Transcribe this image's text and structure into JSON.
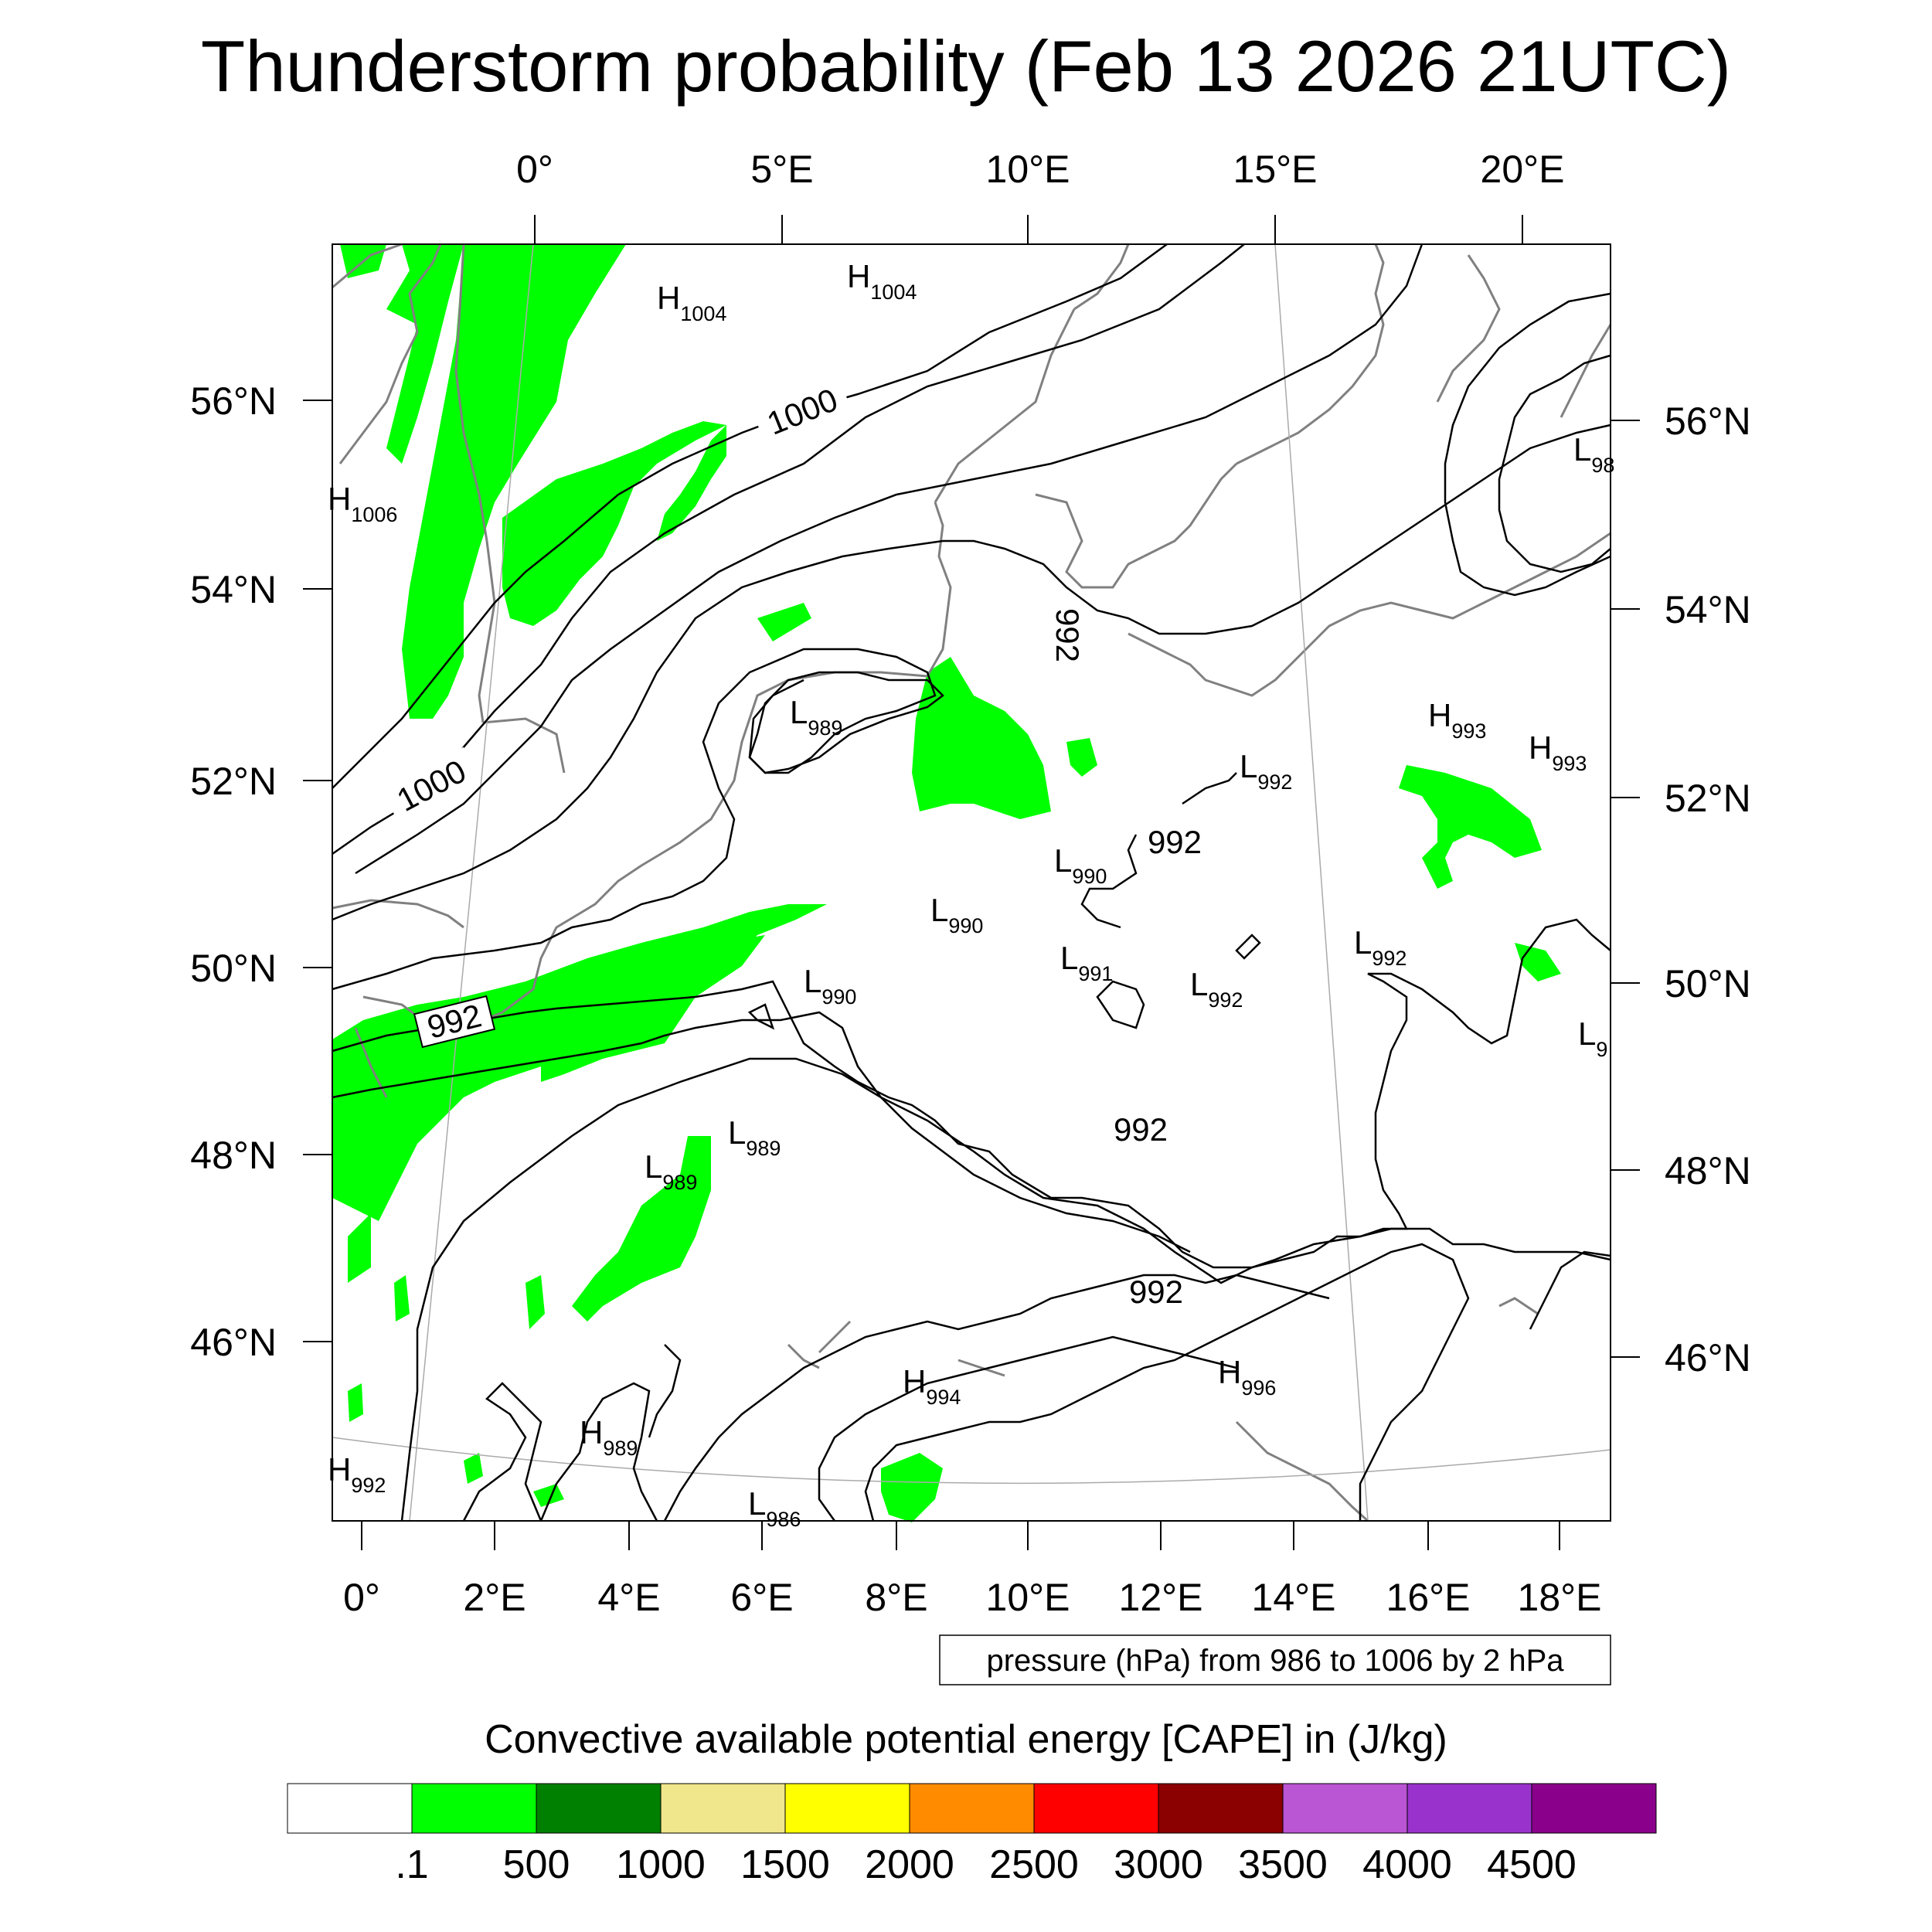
{
  "title": "Thunderstorm probability (Feb 13 2026 21UTC)",
  "map_data": {
    "region": "Western and Central Europe",
    "layers": [
      "CAPE shaded",
      "mean sea level pressure contours",
      "coastlines and borders"
    ],
    "top_lon_labels": [
      "0°",
      "5°E",
      "10°E",
      "15°E",
      "20°E"
    ],
    "bottom_lon_labels": [
      "0°",
      "2°E",
      "4°E",
      "6°E",
      "8°E",
      "10°E",
      "12°E",
      "14°E",
      "16°E",
      "18°E"
    ],
    "left_lat_labels": [
      "56°N",
      "54°N",
      "52°N",
      "50°N",
      "48°N",
      "46°N"
    ],
    "right_lat_labels": [
      "56°N",
      "54°N",
      "52°N",
      "50°N",
      "48°N",
      "46°N"
    ],
    "pressure_centers": [
      {
        "type": "H",
        "value": "1004",
        "text_L": "H",
        "near": "North Sea"
      },
      {
        "type": "H",
        "value": "1004",
        "near": "Skagerrak"
      },
      {
        "type": "H",
        "value": "1006",
        "near": "Scotland"
      },
      {
        "type": "L",
        "value": "98",
        "near": "Baltic states (cut off)"
      },
      {
        "type": "L",
        "value": "989",
        "near": "Netherlands"
      },
      {
        "type": "H",
        "value": "993",
        "near": "Poland"
      },
      {
        "type": "H",
        "value": "993",
        "near": "Poland east"
      },
      {
        "type": "L",
        "value": "992",
        "near": "Berlin"
      },
      {
        "type": "L",
        "value": "990",
        "near": "Thuringia"
      },
      {
        "type": "L",
        "value": "990",
        "near": "Hesse"
      },
      {
        "type": "L",
        "value": "991",
        "near": "Bavaria north"
      },
      {
        "type": "L",
        "value": "992",
        "near": "Czechia"
      },
      {
        "type": "L",
        "value": "992",
        "near": "Poland south"
      },
      {
        "type": "L",
        "value": "990",
        "near": "Luxembourg"
      },
      {
        "type": "L",
        "value": "9",
        "near": "Slovakia (cut off)"
      },
      {
        "type": "L",
        "value": "989",
        "near": "Champagne"
      },
      {
        "type": "L",
        "value": "989",
        "near": "Burgundy"
      },
      {
        "type": "H",
        "value": "994",
        "near": "Switzerland"
      },
      {
        "type": "H",
        "value": "996",
        "near": "Slovenia"
      },
      {
        "type": "H",
        "value": "989",
        "near": "Massif Central"
      },
      {
        "type": "H",
        "value": "992",
        "near": "Aquitaine"
      },
      {
        "type": "L",
        "value": "986",
        "near": "Riviera"
      }
    ],
    "contour_labels": [
      "1000",
      "1000",
      "992",
      "992",
      "992",
      "992",
      "992"
    ],
    "note": "pressure (hPa) from 986 to 1006 by 2 hPa"
  },
  "colorbar": {
    "title": "Convective available potential energy [CAPE] in (J/kg)",
    "colors": [
      "#ffffff",
      "#00ff00",
      "#008000",
      "#f0e68c",
      "#ffff00",
      "#ff8c00",
      "#ff0000",
      "#8b0000",
      "#ba55d3",
      "#9932cc",
      "#8b008b"
    ],
    "labels": [
      ".1",
      "500",
      "1000",
      "1500",
      "2000",
      "2500",
      "3000",
      "3500",
      "4000",
      "4500"
    ]
  }
}
